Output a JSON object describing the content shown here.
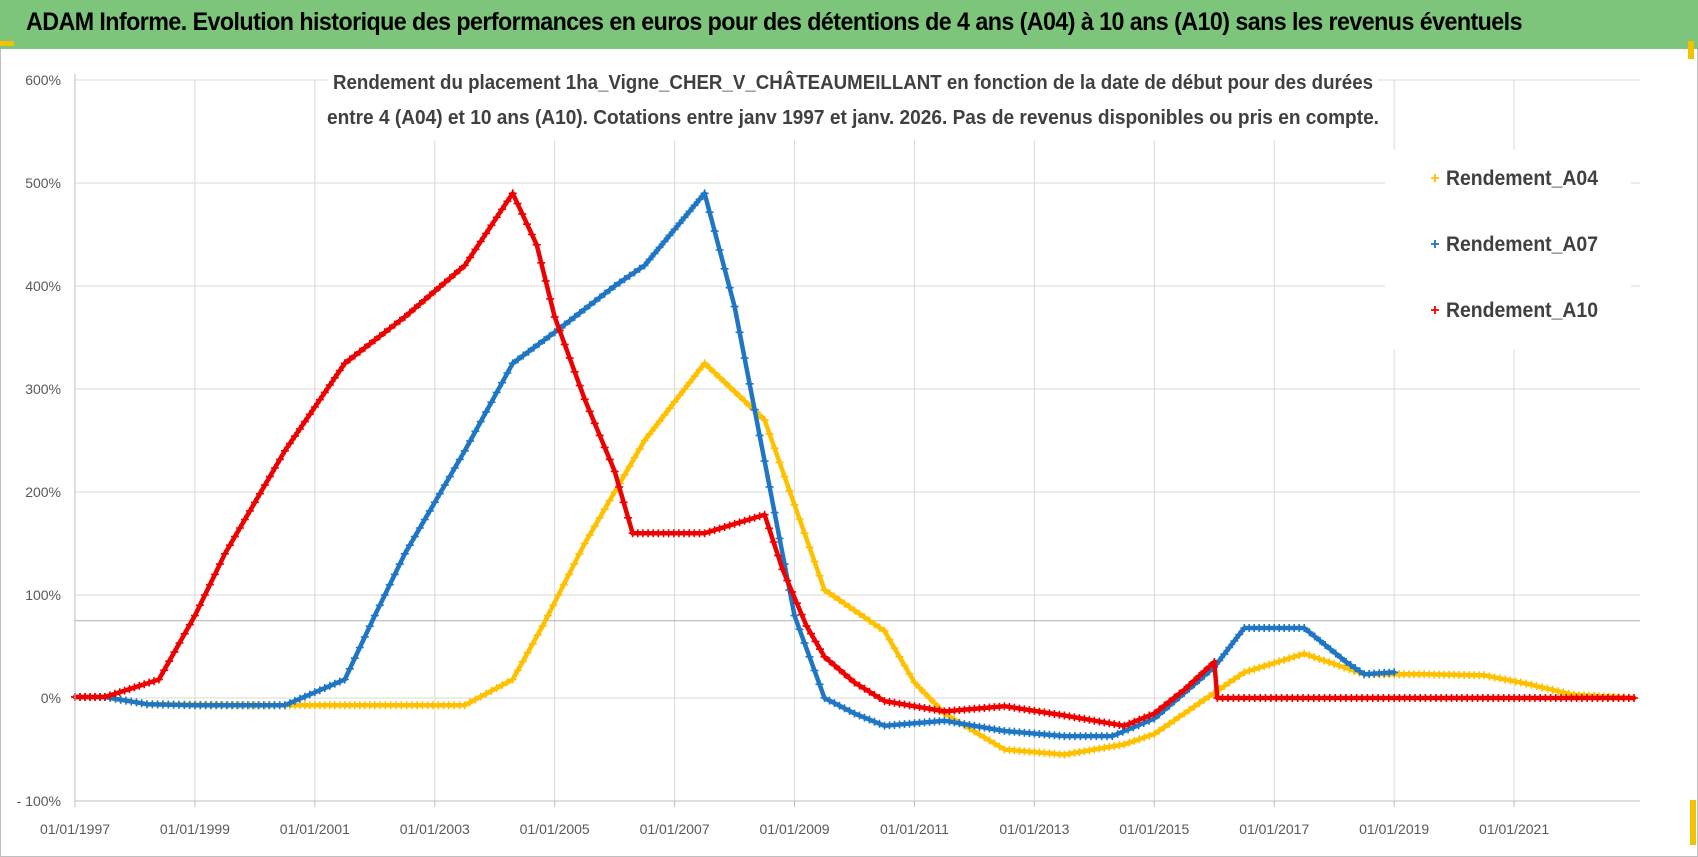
{
  "banner": {
    "title": "ADAM Informe. Evolution historique des performances en euros pour des détentions de 4 ans (A04) à 10 ans (A10) sans les revenus éventuels"
  },
  "colors": {
    "banner_bg": "#7cc57a",
    "A04": "#ffc000",
    "A07": "#1f77c4",
    "A10": "#ee0000",
    "grid": "#d9d9d9",
    "axis": "#bfbfbf"
  },
  "chart_data": {
    "type": "line",
    "title_lines": [
      "Rendement du placement 1ha_Vigne_CHER_V_CHÂTEAUMEILLANT en fonction de la date de début pour des durées",
      "entre 4 (A04) et 10 ans (A10).  Cotations entre janv 1997 et janv. 2026. Pas de revenus disponibles ou pris en compte."
    ],
    "xlabel": "",
    "ylabel": "",
    "xlim": [
      1997.0,
      2023.1
    ],
    "ylim": [
      -100,
      600
    ],
    "y_ticks": [
      -100,
      0,
      100,
      200,
      300,
      400,
      500,
      600
    ],
    "y_tick_labels": [
      "- 100%",
      "0%",
      "100%",
      "200%",
      "300%",
      "400%",
      "500%",
      "600%"
    ],
    "x_ticks": [
      1997,
      1999,
      2001,
      2003,
      2005,
      2007,
      2009,
      2011,
      2013,
      2015,
      2017,
      2019,
      2021
    ],
    "x_tick_labels": [
      "01/01/1997",
      "01/01/1999",
      "01/01/2001",
      "01/01/2003",
      "01/01/2005",
      "01/01/2007",
      "01/01/2009",
      "01/01/2011",
      "01/01/2013",
      "01/01/2015",
      "01/01/2017",
      "01/01/2019",
      "01/01/2021"
    ],
    "legend_position": "right",
    "series": [
      {
        "name": "Rendement_A04",
        "color": "#ffc000",
        "points": [
          [
            1997.0,
            1
          ],
          [
            1997.5,
            1
          ],
          [
            1998.2,
            -6
          ],
          [
            2000.0,
            -7
          ],
          [
            2001.0,
            -7
          ],
          [
            2002.0,
            -7
          ],
          [
            2003.5,
            -7
          ],
          [
            2004.3,
            18
          ],
          [
            2004.8,
            70
          ],
          [
            2005.5,
            150
          ],
          [
            2006.5,
            250
          ],
          [
            2007.5,
            325
          ],
          [
            2008.5,
            270
          ],
          [
            2009.5,
            105
          ],
          [
            2010.5,
            65
          ],
          [
            2011.0,
            15
          ],
          [
            2011.5,
            -15
          ],
          [
            2012.5,
            -50
          ],
          [
            2013.5,
            -55
          ],
          [
            2014.5,
            -45
          ],
          [
            2015.0,
            -35
          ],
          [
            2015.5,
            -15
          ],
          [
            2016.0,
            5
          ],
          [
            2016.5,
            25
          ],
          [
            2017.5,
            43
          ],
          [
            2018.5,
            23
          ],
          [
            2019.5,
            23
          ],
          [
            2020.5,
            22
          ],
          [
            2021.2,
            14
          ],
          [
            2022.0,
            3
          ],
          [
            2023.0,
            0
          ]
        ]
      },
      {
        "name": "Rendement_A07",
        "color": "#1f77c4",
        "points": [
          [
            1997.0,
            1
          ],
          [
            1997.5,
            1
          ],
          [
            1998.2,
            -6
          ],
          [
            1999.0,
            -7
          ],
          [
            2000.5,
            -7
          ],
          [
            2001.5,
            18
          ],
          [
            2002.0,
            80
          ],
          [
            2002.5,
            140
          ],
          [
            2003.5,
            240
          ],
          [
            2004.3,
            325
          ],
          [
            2005.0,
            355
          ],
          [
            2006.0,
            400
          ],
          [
            2006.5,
            420
          ],
          [
            2007.5,
            490
          ],
          [
            2008.0,
            380
          ],
          [
            2008.5,
            230
          ],
          [
            2009.0,
            80
          ],
          [
            2009.5,
            0
          ],
          [
            2010.0,
            -15
          ],
          [
            2010.5,
            -27
          ],
          [
            2011.5,
            -22
          ],
          [
            2012.5,
            -32
          ],
          [
            2013.5,
            -37
          ],
          [
            2014.3,
            -37
          ],
          [
            2015.0,
            -20
          ],
          [
            2015.5,
            5
          ],
          [
            2016.0,
            30
          ],
          [
            2016.5,
            68
          ],
          [
            2017.5,
            68
          ],
          [
            2018.2,
            35
          ],
          [
            2018.5,
            23
          ],
          [
            2019.0,
            25
          ]
        ]
      },
      {
        "name": "Rendement_A10",
        "color": "#ee0000",
        "points": [
          [
            1997.0,
            1
          ],
          [
            1997.5,
            1
          ],
          [
            1998.4,
            18
          ],
          [
            1999.0,
            80
          ],
          [
            1999.5,
            140
          ],
          [
            2000.5,
            240
          ],
          [
            2001.5,
            325
          ],
          [
            2002.5,
            370
          ],
          [
            2003.5,
            420
          ],
          [
            2004.3,
            490
          ],
          [
            2004.7,
            440
          ],
          [
            2005.0,
            370
          ],
          [
            2005.5,
            290
          ],
          [
            2006.0,
            220
          ],
          [
            2006.3,
            160
          ],
          [
            2007.5,
            160
          ],
          [
            2008.5,
            178
          ],
          [
            2008.8,
            125
          ],
          [
            2009.2,
            70
          ],
          [
            2009.5,
            40
          ],
          [
            2010.0,
            15
          ],
          [
            2010.5,
            -3
          ],
          [
            2011.5,
            -13
          ],
          [
            2012.5,
            -8
          ],
          [
            2013.5,
            -17
          ],
          [
            2014.5,
            -27
          ],
          [
            2015.0,
            -15
          ],
          [
            2015.5,
            8
          ],
          [
            2016.0,
            35
          ],
          [
            2016.05,
            0
          ],
          [
            2019.0,
            0
          ],
          [
            2021.0,
            0
          ],
          [
            2023.0,
            0
          ]
        ]
      }
    ]
  }
}
